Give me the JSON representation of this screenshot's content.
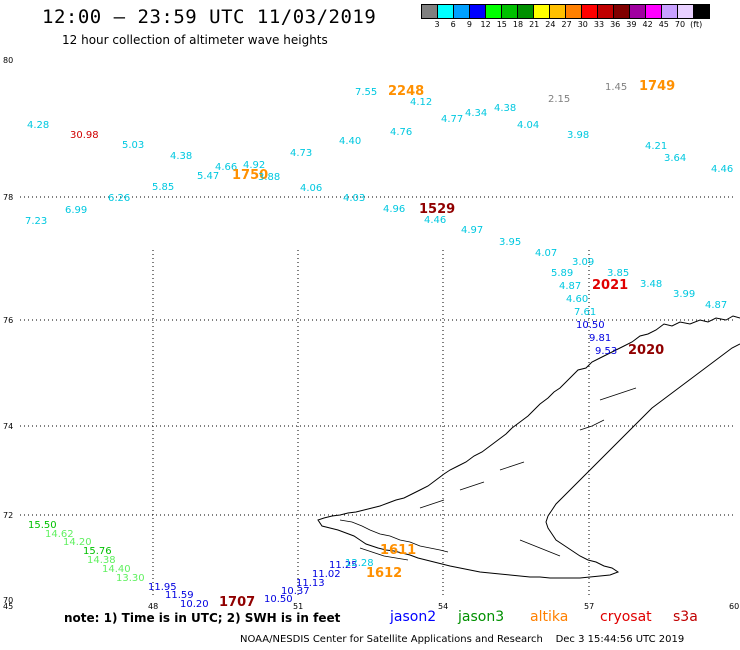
{
  "header": {
    "title": "12:00 – 23:59 UTC 11/03/2019",
    "subtitle": "12 hour collection of altimeter wave heights"
  },
  "legend": {
    "colors": [
      "#808080",
      "#00ffff",
      "#00a0ff",
      "#0000ff",
      "#00ff00",
      "#00c000",
      "#009000",
      "#ffff00",
      "#ffc000",
      "#ff8000",
      "#ff0000",
      "#c00000",
      "#800000",
      "#a000a0",
      "#ff00ff",
      "#c8a0ff",
      "#e8d0ff",
      "#000000"
    ],
    "labels": [
      "3",
      "6",
      "9",
      "12",
      "15",
      "18",
      "21",
      "24",
      "27",
      "30",
      "33",
      "36",
      "39",
      "42",
      "45",
      "70",
      "(ft)"
    ]
  },
  "axes": {
    "lat_labels": [
      "80",
      "78",
      "76",
      "74",
      "72",
      "70"
    ],
    "lon_labels": [
      "45",
      "48",
      "51",
      "54",
      "57",
      "60"
    ]
  },
  "note": {
    "text": "note:  1) Time is in UTC;  2) SWH is in feet",
    "satellites": [
      {
        "name": "jason2",
        "color": "#0000ff"
      },
      {
        "name": "jason3",
        "color": "#009000"
      },
      {
        "name": "altika",
        "color": "#ff8000"
      },
      {
        "name": "cryosat",
        "color": "#e00000"
      },
      {
        "name": "s3a",
        "color": "#c00000"
      }
    ]
  },
  "footer": {
    "credit": "NOAA/NESDIS Center for Satellite Applications and Research",
    "timestamp": "Dec  3 15:44:56 UTC 2019"
  },
  "observations": [
    {
      "v": "4.28",
      "c": "#00c8e0"
    },
    {
      "v": "30.98",
      "c": "#d00000"
    },
    {
      "v": "5.03",
      "c": "#00c8e0"
    },
    {
      "v": "4.38",
      "c": "#00c8e0"
    },
    {
      "v": "5.47",
      "c": "#00c8e0"
    },
    {
      "v": "4.66",
      "c": "#00c8e0"
    },
    {
      "v": "4.92",
      "c": "#00c8e0"
    },
    {
      "v": "1750",
      "c": "#ff9000",
      "big": true
    },
    {
      "v": "3.88",
      "c": "#00c8e0"
    },
    {
      "v": "4.73",
      "c": "#00c8e0"
    },
    {
      "v": "4.40",
      "c": "#00c8e0"
    },
    {
      "v": "7.55",
      "c": "#00c8e0"
    },
    {
      "v": "2248",
      "c": "#ff9000",
      "big": true
    },
    {
      "v": "4.12",
      "c": "#00c8e0"
    },
    {
      "v": "4.76",
      "c": "#00c8e0"
    },
    {
      "v": "4.77",
      "c": "#00c8e0"
    },
    {
      "v": "4.34",
      "c": "#00c8e0"
    },
    {
      "v": "4.38",
      "c": "#00c8e0"
    },
    {
      "v": "4.04",
      "c": "#00c8e0"
    },
    {
      "v": "2.15",
      "c": "#808080"
    },
    {
      "v": "3.98",
      "c": "#00c8e0"
    },
    {
      "v": "1.45",
      "c": "#808080"
    },
    {
      "v": "1749",
      "c": "#ff9000",
      "big": true
    },
    {
      "v": "4.21",
      "c": "#00c8e0"
    },
    {
      "v": "3.64",
      "c": "#00c8e0"
    },
    {
      "v": "4.46",
      "c": "#00c8e0"
    },
    {
      "v": "7.23",
      "c": "#00c8e0"
    },
    {
      "v": "6.99",
      "c": "#00c8e0"
    },
    {
      "v": "6.26",
      "c": "#00c8e0"
    },
    {
      "v": "5.85",
      "c": "#00c8e0"
    },
    {
      "v": "4.06",
      "c": "#00c8e0"
    },
    {
      "v": "4.03",
      "c": "#00c8e0"
    },
    {
      "v": "4.96",
      "c": "#00c8e0"
    },
    {
      "v": "1529",
      "c": "#900000",
      "big": true
    },
    {
      "v": "4.46",
      "c": "#00c8e0"
    },
    {
      "v": "4.97",
      "c": "#00c8e0"
    },
    {
      "v": "3.95",
      "c": "#00c8e0"
    },
    {
      "v": "4.07",
      "c": "#00c8e0"
    },
    {
      "v": "3.09",
      "c": "#00c8e0"
    },
    {
      "v": "5.89",
      "c": "#00c8e0"
    },
    {
      "v": "3.85",
      "c": "#00c8e0"
    },
    {
      "v": "4.87",
      "c": "#00c8e0"
    },
    {
      "v": "2021",
      "c": "#e00000",
      "big": true
    },
    {
      "v": "3.48",
      "c": "#00c8e0"
    },
    {
      "v": "3.99",
      "c": "#00c8e0"
    },
    {
      "v": "4.60",
      "c": "#00c8e0"
    },
    {
      "v": "4.87",
      "c": "#00c8e0"
    },
    {
      "v": "7.61",
      "c": "#00c8e0"
    },
    {
      "v": "10.50",
      "c": "#0000e0"
    },
    {
      "v": "9.81",
      "c": "#0000e0"
    },
    {
      "v": "9.53",
      "c": "#0000e0"
    },
    {
      "v": "2020",
      "c": "#900000",
      "big": true
    },
    {
      "v": "15.50",
      "c": "#00c000"
    },
    {
      "v": "14.62",
      "c": "#60f060"
    },
    {
      "v": "14.20",
      "c": "#60f060"
    },
    {
      "v": "15.76",
      "c": "#00c000"
    },
    {
      "v": "14.38",
      "c": "#60f060"
    },
    {
      "v": "14.40",
      "c": "#60f060"
    },
    {
      "v": "13.30",
      "c": "#60f060"
    },
    {
      "v": "11.95",
      "c": "#0000e0"
    },
    {
      "v": "11.59",
      "c": "#0000e0"
    },
    {
      "v": "10.20",
      "c": "#0000e0"
    },
    {
      "v": "1707",
      "c": "#900000",
      "big": true
    },
    {
      "v": "10.50",
      "c": "#0000e0"
    },
    {
      "v": "10.37",
      "c": "#0000e0"
    },
    {
      "v": "11.13",
      "c": "#0000e0"
    },
    {
      "v": "11.02",
      "c": "#0000e0"
    },
    {
      "v": "11.25",
      "c": "#0000e0"
    },
    {
      "v": "12.28",
      "c": "#00c8e0"
    },
    {
      "v": "1611",
      "c": "#ff9000",
      "big": true
    },
    {
      "v": "1612",
      "c": "#ff9000",
      "big": true
    }
  ]
}
